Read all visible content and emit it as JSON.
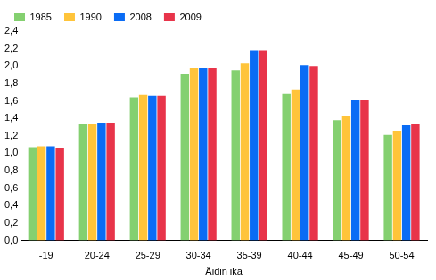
{
  "chart_data": {
    "type": "bar",
    "x_label": "Äidin ikä",
    "categories": [
      "-19",
      "20-24",
      "25-29",
      "30-34",
      "35-39",
      "40-44",
      "45-49",
      "50-54"
    ],
    "series": [
      {
        "name": "1985",
        "color": "#84d070",
        "values": [
          1.07,
          1.33,
          1.64,
          1.91,
          1.95,
          1.68,
          1.38,
          1.21
        ]
      },
      {
        "name": "1990",
        "color": "#ffc43a",
        "values": [
          1.08,
          1.33,
          1.67,
          1.98,
          2.03,
          1.73,
          1.43,
          1.26
        ]
      },
      {
        "name": "2008",
        "color": "#0a6cf5",
        "values": [
          1.08,
          1.35,
          1.66,
          1.98,
          2.18,
          2.01,
          1.61,
          1.32
        ]
      },
      {
        "name": "2009",
        "color": "#e8344a",
        "values": [
          1.06,
          1.35,
          1.66,
          1.98,
          2.18,
          2.0,
          1.61,
          1.33
        ]
      }
    ],
    "ylim": [
      0,
      2.4
    ],
    "yticks": [
      {
        "value": 0,
        "label": "0,0"
      },
      {
        "value": 0.2,
        "label": "0,2"
      },
      {
        "value": 0.4,
        "label": "0,4"
      },
      {
        "value": 0.6,
        "label": "0,6"
      },
      {
        "value": 0.8,
        "label": "0,8"
      },
      {
        "value": 1,
        "label": "1,0"
      },
      {
        "value": 1.2,
        "label": "1,2"
      },
      {
        "value": 1.4,
        "label": "1,4"
      },
      {
        "value": 1.6,
        "label": "1,6"
      },
      {
        "value": 1.8,
        "label": "1,8"
      },
      {
        "value": 2,
        "label": "2,0"
      },
      {
        "value": 2.2,
        "label": "2,2"
      },
      {
        "value": 2.4,
        "label": "2,4"
      }
    ],
    "grid": false,
    "legend": "top-left"
  }
}
